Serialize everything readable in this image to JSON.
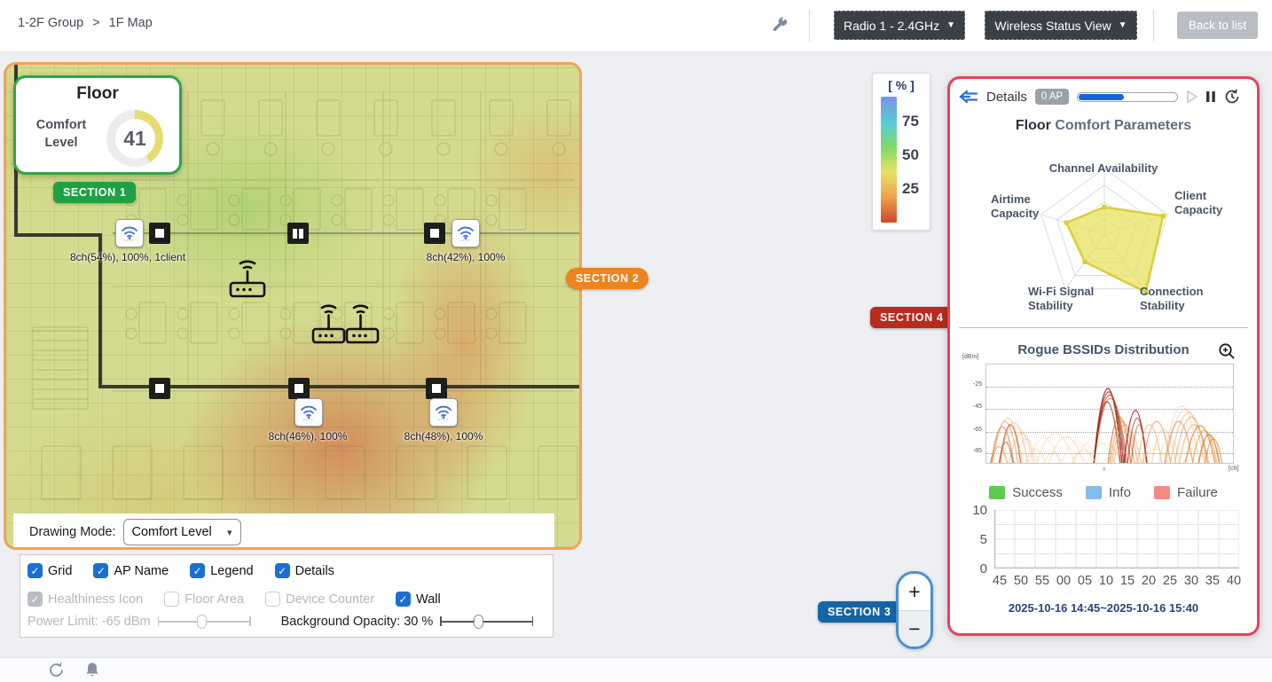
{
  "topbar": {
    "breadcrumb": {
      "group": "1-2F Group",
      "separator": ">",
      "page": "1F Map"
    },
    "radio_dropdown": "Radio 1 - 2.4GHz",
    "view_dropdown": "Wireless Status View",
    "back_button": "Back to list"
  },
  "map": {
    "comfort_card": {
      "title": "Floor",
      "label": "Comfort Level",
      "value": "41",
      "arc_color": "#e5dc72",
      "ring_color": "#ececec"
    },
    "badges": {
      "s1": {
        "label": "SECTION 1",
        "color": "#1ea144"
      },
      "s2": {
        "label": "SECTION 2",
        "color": "#ec8420"
      },
      "s3": {
        "label": "SECTION 3",
        "color": "#1565a7"
      },
      "s4": {
        "label": "SECTION 4",
        "color": "#b72c1d"
      }
    },
    "ap_labels": [
      "8ch(54%), 100%, 1client",
      "8ch(42%), 100%",
      "8ch(46%), 100%",
      "8ch(48%), 100%"
    ],
    "drawing_mode": {
      "label": "Drawing Mode:",
      "value": "Comfort Level"
    }
  },
  "controls": {
    "row1": [
      {
        "label": "Grid",
        "checked": true,
        "disabled": false
      },
      {
        "label": "AP Name",
        "checked": true,
        "disabled": false
      },
      {
        "label": "Legend",
        "checked": true,
        "disabled": false
      },
      {
        "label": "Details",
        "checked": true,
        "disabled": false
      }
    ],
    "row2": [
      {
        "label": "Healthiness Icon",
        "checked": true,
        "disabled": true
      },
      {
        "label": "Floor Area",
        "checked": false,
        "disabled": true
      },
      {
        "label": "Device Counter",
        "checked": false,
        "disabled": true
      },
      {
        "label": "Wall",
        "checked": true,
        "disabled": false
      }
    ],
    "power_limit": "Power Limit: -65 dBm",
    "bg_opacity": "Background Opacity: 30 %"
  },
  "scale_legend": {
    "title": "[ % ]",
    "ticks": [
      "75",
      "50",
      "25"
    ],
    "gradient": [
      "#7b92e8",
      "#58cbd8",
      "#7fd96b",
      "#e8e263",
      "#eda14d",
      "#cc4a28"
    ]
  },
  "panel": {
    "header": {
      "details": "Details",
      "ap_badge": "0 AP",
      "progress_pct": 45
    },
    "title": {
      "part1": "Floor",
      "part2": "Comfort Parameters"
    },
    "legend": [
      {
        "label": "Success",
        "color": "#5ecb50"
      },
      {
        "label": "Info",
        "color": "#85bce8"
      },
      {
        "label": "Failure",
        "color": "#f28b82"
      }
    ],
    "timestamp": "2025-10-16 14:45~2025-10-16 15:40"
  },
  "zoom_control": {
    "plus": "+",
    "minus": "−"
  },
  "chart_data": [
    {
      "type": "radar",
      "title": "Floor Comfort Parameters",
      "axes": [
        "Channel Availability",
        "Client Capacity",
        "Connection Stability",
        "Wi-Fi Signal Stability",
        "Airtime Capacity"
      ],
      "values_pct": [
        42,
        93,
        106,
        50,
        60
      ],
      "max": 100,
      "grid_levels": 4,
      "fill": "#e8e15a",
      "stroke": "#d9cf3a"
    },
    {
      "type": "area",
      "title": "Rogue BSSIDs Distribution",
      "ylabel": "[dBm]",
      "xlabel": "[ch]",
      "x_tick": "x",
      "yticks": [
        -25,
        -45,
        -65,
        -85
      ],
      "ylim": [
        -95,
        -5
      ],
      "arcs": [
        [
          14,
          10,
          -80,
          "#e89040",
          0.6
        ],
        [
          18,
          13,
          -62,
          "#d4651f",
          0.55
        ],
        [
          21,
          15,
          -57,
          "#e28a3a",
          0.5
        ],
        [
          24,
          17,
          -54,
          "#ecb36d",
          0.45
        ],
        [
          27,
          12,
          -60,
          "#c24a18",
          0.7
        ],
        [
          31,
          16,
          -58,
          "#e8a050",
          0.45
        ],
        [
          35,
          18,
          -63,
          "#f2c488",
          0.4
        ],
        [
          40,
          15,
          -68,
          "#eeae60",
          0.45
        ],
        [
          45,
          13,
          -73,
          "#f4cf9a",
          0.4
        ],
        [
          22,
          8,
          -76,
          "#b23812",
          0.5
        ],
        [
          65,
          18,
          -72,
          "#f4cfa0",
          0.4
        ],
        [
          78,
          22,
          -68,
          "#f2c894",
          0.42
        ],
        [
          90,
          20,
          -71,
          "#efc08a",
          0.4
        ],
        [
          102,
          18,
          -75,
          "#f6d6ac",
          0.35
        ],
        [
          112,
          16,
          -78,
          "#f3cf9f",
          0.3
        ],
        [
          85,
          30,
          -80,
          "#f6dcb4",
          0.35
        ],
        [
          122,
          24,
          -74,
          "#f5d4a8",
          0.3
        ],
        [
          133,
          20,
          -77,
          "#f2c890",
          0.3
        ],
        [
          137,
          16,
          -27,
          "#8e1e0a",
          0.85
        ],
        [
          138,
          17,
          -30,
          "#a3240d",
          0.75
        ],
        [
          139,
          18,
          -33,
          "#b32f13",
          0.65
        ],
        [
          140,
          19,
          -36,
          "#bf3a1a",
          0.55
        ],
        [
          136,
          15,
          -39,
          "#992310",
          0.7
        ],
        [
          150,
          13,
          -53,
          "#d06020",
          0.65
        ],
        [
          153,
          14,
          -57,
          "#e17a28",
          0.55
        ],
        [
          156,
          15,
          -60,
          "#e9914a",
          0.5
        ],
        [
          159,
          16,
          -64,
          "#efa85e",
          0.45
        ],
        [
          168,
          13,
          -47,
          "#9a1f0c",
          0.8
        ],
        [
          170,
          11,
          -54,
          "#ad2a10",
          0.65
        ],
        [
          172,
          9,
          -60,
          "#c23a16",
          0.55
        ],
        [
          184,
          14,
          -60,
          "#e9a055",
          0.5
        ],
        [
          192,
          16,
          -57,
          "#da7830",
          0.5
        ],
        [
          200,
          14,
          -64,
          "#f0b878",
          0.45
        ],
        [
          206,
          12,
          -70,
          "#f3c890",
          0.4
        ],
        [
          220,
          20,
          -43,
          "#efc6a2",
          0.5
        ],
        [
          224,
          22,
          -46,
          "#f1ba8a",
          0.5
        ],
        [
          228,
          21,
          -49,
          "#eba56b",
          0.5
        ],
        [
          231,
          19,
          -53,
          "#e69251",
          0.5
        ],
        [
          217,
          16,
          -57,
          "#de8038",
          0.55
        ],
        [
          234,
          17,
          -60,
          "#ea9a50",
          0.5
        ],
        [
          241,
          17,
          -61,
          "#e8821c",
          0.75
        ],
        [
          246,
          14,
          -65,
          "#ef9a30",
          0.65
        ],
        [
          251,
          12,
          -69,
          "#d4690f",
          0.75
        ],
        [
          256,
          10,
          -73,
          "#e07820",
          0.6
        ],
        [
          55,
          12,
          -82,
          "#f6d88e",
          0.5
        ],
        [
          110,
          14,
          -83,
          "#f4d488",
          0.5
        ],
        [
          150,
          20,
          -84,
          "#f6da96",
          0.45
        ],
        [
          190,
          16,
          -82,
          "#f5d68e",
          0.5
        ],
        [
          235,
          14,
          -83,
          "#f4d28a",
          0.5
        ],
        [
          75,
          10,
          -85,
          "#f2cc80",
          0.45
        ]
      ]
    },
    {
      "type": "bar",
      "categories": [
        "45",
        "50",
        "55",
        "00",
        "05",
        "10",
        "15",
        "20",
        "25",
        "30",
        "35",
        "40"
      ],
      "series": [],
      "yticks": [
        "10",
        "5",
        "0"
      ],
      "ylim": [
        0,
        10
      ],
      "timestamp": "2025-10-16 14:45~2025-10-16 15:40"
    }
  ]
}
